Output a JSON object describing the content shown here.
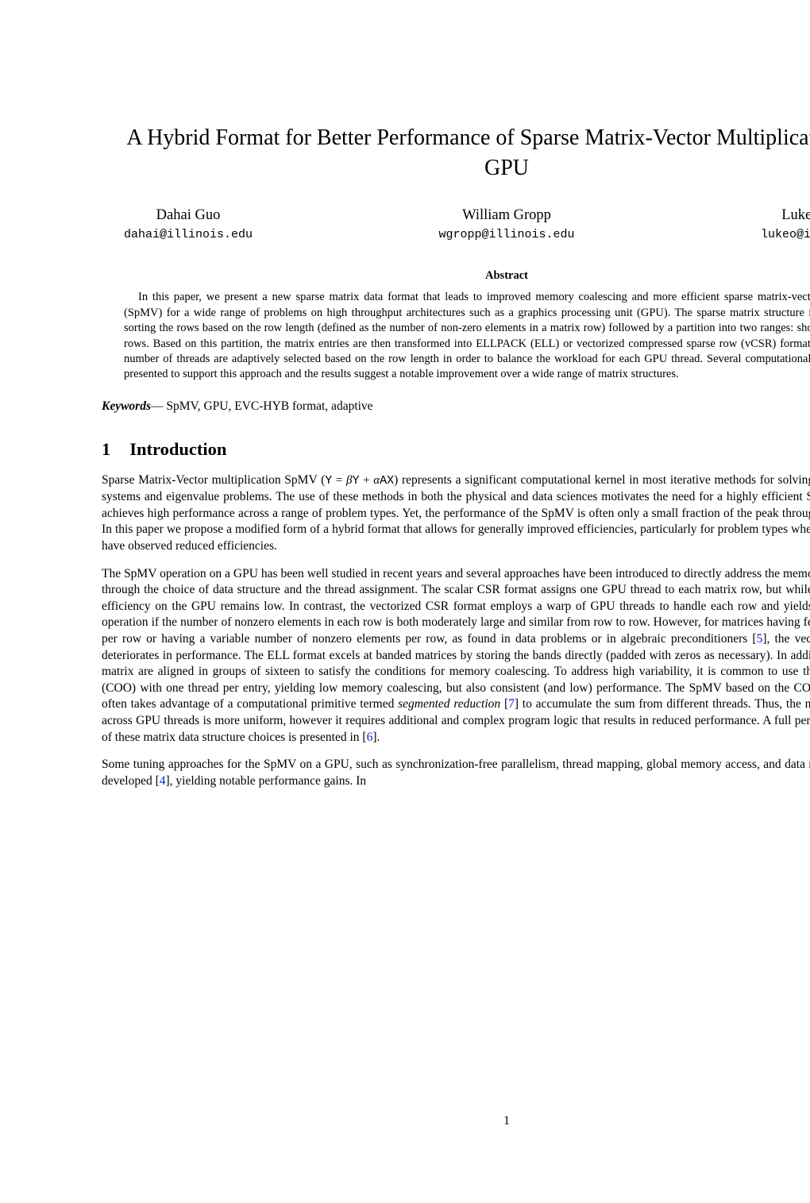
{
  "colors": {
    "text": "#000000",
    "background": "#ffffff",
    "citation": "#0026d9"
  },
  "typography": {
    "body_font": "Times New Roman, serif",
    "mono_font": "Courier New, monospace",
    "title_fontsize": 28,
    "author_name_fontsize": 18.5,
    "author_email_fontsize": 17,
    "abstract_fontsize": 14.5,
    "body_fontsize": 15.5,
    "section_heading_fontsize": 22.5
  },
  "title": "A Hybrid Format for Better Performance of Sparse Matrix-Vector Multiplication on a GPU",
  "authors": [
    {
      "name": "Dahai Guo",
      "email": "dahai@illinois.edu"
    },
    {
      "name": "William Gropp",
      "email": "wgropp@illinois.edu"
    },
    {
      "name": "Luke N. Olson",
      "email": "lukeo@illinois.edu"
    }
  ],
  "abstract": {
    "heading": "Abstract",
    "body": "In this paper, we present a new sparse matrix data format that leads to improved memory coalescing and more efficient sparse matrix-vector multiplication (SpMV) for a wide range of problems on high throughput architectures such as a graphics processing unit (GPU). The sparse matrix structure is constructed by sorting the rows based on the row length (defined as the number of non-zero elements in a matrix row) followed by a partition into two ranges: short rows and long rows. Based on this partition, the matrix entries are then transformed into ELLPACK (ELL) or vectorized compressed sparse row (vCSR) format. In addition, the number of threads are adaptively selected based on the row length in order to balance the workload for each GPU thread. Several computational experiments are presented to support this approach and the results suggest a notable improvement over a wide range of matrix structures."
  },
  "keywords": {
    "label": "Keywords",
    "dash": "—",
    "text": " SpMV, GPU, EVC-HYB format, adaptive"
  },
  "section": {
    "number": "1",
    "title": "Introduction"
  },
  "paragraphs": {
    "p1_a": "Sparse Matrix-Vector multiplication SpMV (",
    "p1_math": "Y = βY + αAX",
    "p1_b": ") represents a significant computational kernel in most iterative methods for solving large, sparse linear systems and eigenvalue problems. The use of these methods in both the physical and data sciences motivates the need for a highly efficient SpMV operation that achieves high performance across a range of problem types. Yet, the performance of the SpMV is often only a small fraction of the peak throughput of a processor. In this paper we propose a modified form of a hybrid format that allows for generally improved efficiencies, particularly for problem types where previous attempts have observed reduced efficiencies.",
    "p2_a": "The SpMV operation on a GPU has been well studied in recent years and several approaches have been introduced to directly address the memory access overheads through the choice of data structure and the thread assignment. The scalar CSR format assigns one GPU thread to each matrix row, but while straightforward the efficiency on the GPU remains low. In contrast, the vectorized CSR format employs a warp of GPU threads to handle each row and yields an efficient SpMV operation if the number of nonzero elements in each row is both moderately large and similar from row to row. However, for matrices having few nonzero elements per row or having a variable number of nonzero elements per row, as found in data problems or in algebraic preconditioners [",
    "cite5": "5",
    "p2_b": "], the vectorized CSR format deteriorates in performance. The ELL format excels at banded matrices by storing the bands directly (padded with zeros as necessary). In addition, columns of the matrix are aligned in groups of sixteen to satisfy the conditions for memory coalescing. To address high variability, it is common to use the coordinate format (COO) with one thread per entry, yielding low memory coalescing, but also consistent (and low) performance. The SpMV based on the COO format on a GPU often takes advantage of a computational primitive termed ",
    "p2_seg": "segmented reduction",
    "p2_c": " [",
    "cite7": "7",
    "p2_d": "] to accumulate the sum from different threads. Thus, the number of operations across GPU threads is more uniform, however it requires additional and complex program logic that results in reduced performance. A full performance evaluation of these matrix data structure choices is presented in [",
    "cite6": "6",
    "p2_e": "].",
    "p3_a": "Some tuning approaches for the SpMV on a GPU, such as synchronization-free parallelism, thread mapping, global memory access, and data reuse have also been developed [",
    "cite4": "4",
    "p3_b": "], yielding notable performance gains. In"
  },
  "page_number": "1"
}
